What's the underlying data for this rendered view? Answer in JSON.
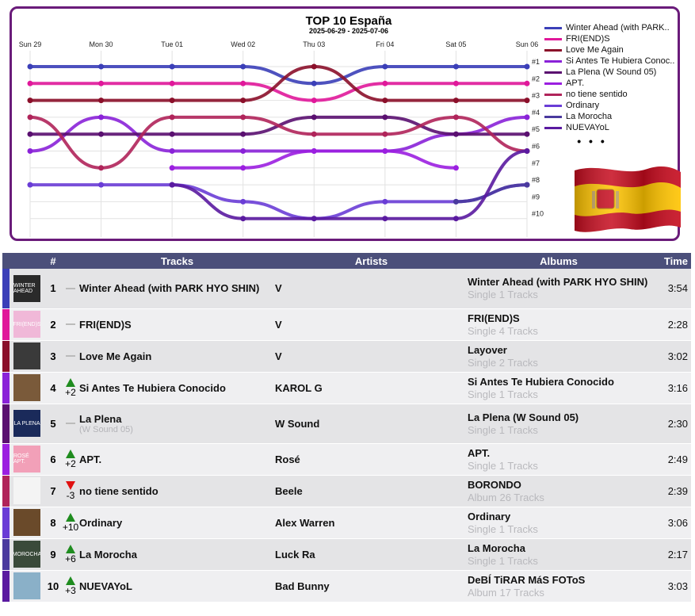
{
  "chart_data": {
    "type": "line",
    "title": "TOP 10 España",
    "subtitle": "2025-06-29 - 2025-07-06",
    "x": [
      "Sun 29",
      "Mon 30",
      "Tue 01",
      "Wed 02",
      "Thu 03",
      "Fri 04",
      "Sat 05",
      "Sun 06"
    ],
    "y_ticks": [
      "#1",
      "#2",
      "#3",
      "#4",
      "#5",
      "#6",
      "#7",
      "#8",
      "#9",
      "#10"
    ],
    "ylim": [
      1,
      10
    ],
    "y_inverted": true,
    "grid": true,
    "legend_position": "right",
    "legend_more": "• • •",
    "series": [
      {
        "name": "Winter Ahead (with PARK..",
        "color": "#3b3fb8",
        "values": [
          1,
          1,
          1,
          1,
          2,
          1,
          1,
          1
        ]
      },
      {
        "name": "FRI(END)S",
        "color": "#e0189a",
        "values": [
          2,
          2,
          2,
          2,
          3,
          2,
          2,
          2
        ]
      },
      {
        "name": "Love Me Again",
        "color": "#8b0f2a",
        "values": [
          3,
          3,
          3,
          3,
          1,
          3,
          3,
          3
        ]
      },
      {
        "name": "Si Antes Te Hubiera Conoc..",
        "color": "#8a22d8",
        "values": [
          6,
          4,
          6,
          6,
          6,
          6,
          5,
          4
        ]
      },
      {
        "name": "La Plena (W Sound 05)",
        "color": "#5a1070",
        "values": [
          5,
          5,
          5,
          5,
          4,
          4,
          5,
          5
        ]
      },
      {
        "name": "APT.",
        "color": "#9b1fe0",
        "values": [
          null,
          null,
          7,
          7,
          6,
          6,
          7,
          null
        ]
      },
      {
        "name": "no tiene sentido",
        "color": "#b0245a",
        "values": [
          4,
          7,
          4,
          4,
          5,
          5,
          4,
          6
        ]
      },
      {
        "name": "Ordinary",
        "color": "#6a3dd6",
        "values": [
          8,
          8,
          8,
          9,
          10,
          9,
          9,
          8
        ]
      },
      {
        "name": "La Morocha",
        "color": "#4a3a9e",
        "values": [
          null,
          null,
          null,
          null,
          null,
          null,
          9,
          8
        ]
      },
      {
        "name": "NUEVAYoL",
        "color": "#5a1aa0",
        "values": [
          null,
          null,
          8,
          10,
          10,
          10,
          10,
          6
        ]
      }
    ]
  },
  "table": {
    "headers": {
      "rank": "#",
      "tracks": "Tracks",
      "artists": "Artists",
      "albums": "Albums",
      "time": "Time"
    },
    "rows": [
      {
        "rank": "1",
        "move": "",
        "dir": "same",
        "title": "Winter Ahead (with PARK HYO SHIN)",
        "subtitle": "",
        "artist": "V",
        "album": "Winter Ahead (with PARK HYO SHIN)",
        "album_type": "Single 1 Tracks",
        "time": "3:54",
        "bar": "#3b3fb8",
        "cover": "#2a2a2a",
        "cover_text": "WINTER AHEAD"
      },
      {
        "rank": "2",
        "move": "",
        "dir": "same",
        "title": "FRI(END)S",
        "subtitle": "",
        "artist": "V",
        "album": "FRI(END)S",
        "album_type": "Single 4 Tracks",
        "time": "2:28",
        "bar": "#e0189a",
        "cover": "#f0b8d8",
        "cover_text": "FRI(END)S"
      },
      {
        "rank": "3",
        "move": "",
        "dir": "same",
        "title": "Love Me Again",
        "subtitle": "",
        "artist": "V",
        "album": "Layover",
        "album_type": "Single 2 Tracks",
        "time": "3:02",
        "bar": "#8b0f2a",
        "cover": "#3a3a3a",
        "cover_text": ""
      },
      {
        "rank": "4",
        "move": "+2",
        "dir": "up",
        "title": "Si Antes Te Hubiera Conocido",
        "subtitle": "",
        "artist": "KAROL G",
        "album": "Si Antes Te Hubiera Conocido",
        "album_type": "Single 1 Tracks",
        "time": "3:16",
        "bar": "#8a22d8",
        "cover": "#7a5a3a",
        "cover_text": ""
      },
      {
        "rank": "5",
        "move": "",
        "dir": "same",
        "title": "La Plena",
        "subtitle": "(W Sound 05)",
        "artist": "W Sound",
        "album": "La Plena (W Sound 05)",
        "album_type": "Single 1 Tracks",
        "time": "2:30",
        "bar": "#5a1070",
        "cover": "#1a2a5a",
        "cover_text": "LA PLENA"
      },
      {
        "rank": "6",
        "move": "+2",
        "dir": "up",
        "title": "APT.",
        "subtitle": "",
        "artist": "Rosé",
        "album": "APT.",
        "album_type": "Single 1 Tracks",
        "time": "2:49",
        "bar": "#9b1fe0",
        "cover": "#f2a0b8",
        "cover_text": "ROSÉ APT."
      },
      {
        "rank": "7",
        "move": "-3",
        "dir": "down",
        "title": "no tiene sentido",
        "subtitle": "",
        "artist": "Beele",
        "album": "BORONDO",
        "album_type": "Album 26 Tracks",
        "time": "2:39",
        "bar": "#b0245a",
        "cover": "#f4f4f4",
        "cover_text": ""
      },
      {
        "rank": "8",
        "move": "+10",
        "dir": "up",
        "title": "Ordinary",
        "subtitle": "",
        "artist": "Alex Warren",
        "album": "Ordinary",
        "album_type": "Single 1 Tracks",
        "time": "3:06",
        "bar": "#6a3dd6",
        "cover": "#6a4a2a",
        "cover_text": ""
      },
      {
        "rank": "9",
        "move": "+6",
        "dir": "up",
        "title": "La Morocha",
        "subtitle": "",
        "artist": "Luck Ra",
        "album": "La Morocha",
        "album_type": "Single 1 Tracks",
        "time": "2:17",
        "bar": "#4a3a9e",
        "cover": "#3a4a3a",
        "cover_text": "MOROCHA"
      },
      {
        "rank": "10",
        "move": "+3",
        "dir": "up",
        "title": "NUEVAYoL",
        "subtitle": "",
        "artist": "Bad Bunny",
        "album": "DeBÍ TiRAR MáS FOToS",
        "album_type": "Album 17 Tracks",
        "time": "3:03",
        "bar": "#5a1aa0",
        "cover": "#8ab0c8",
        "cover_text": ""
      }
    ]
  }
}
